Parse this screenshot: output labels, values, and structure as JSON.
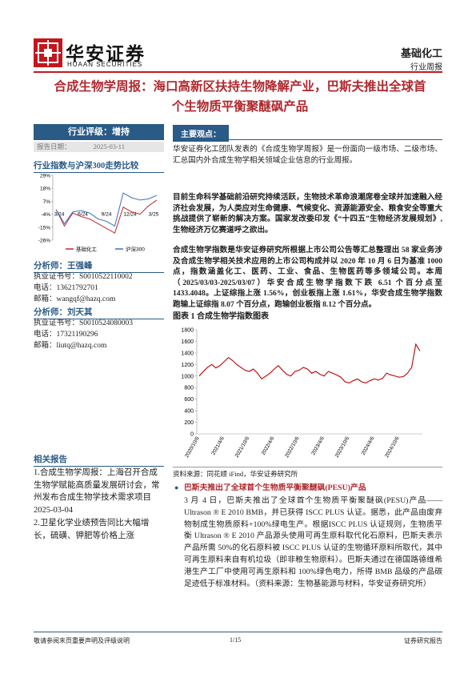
{
  "header": {
    "logo_cn": "华安证券",
    "logo_en": "HUAAN SECURITIES",
    "sector": "基础化工",
    "report_type": "行业周报"
  },
  "title": "合成生物学周报：海口高新区扶持生物降解产业，巴斯夫推出全球首个生物质平衡聚醚砜产品",
  "sidebar": {
    "rating": "行业评级：增持",
    "date_label": "报告日期：",
    "date": "2025-03-11",
    "perf_chart": {
      "type": "line",
      "title": "行业指数与沪深300走势比较",
      "categories": [
        "3/24",
        "6/24",
        "9/24",
        "12/24",
        "3/25"
      ],
      "ylim": [
        -26,
        29
      ],
      "yticks": [
        {
          "value": 29,
          "label": "29%"
        },
        {
          "value": 18,
          "label": "18%"
        },
        {
          "value": 7,
          "label": "7%"
        },
        {
          "value": -4,
          "label": "-4%"
        },
        {
          "value": -15,
          "label": "-15%"
        },
        {
          "value": -26,
          "label": "-26%"
        }
      ],
      "series": [
        {
          "name": "基础化工",
          "color": "#c0282d",
          "values": [
            0,
            -14,
            -3,
            -6,
            -8,
            -12,
            -16,
            -20,
            2,
            -2,
            -4,
            3,
            8
          ]
        },
        {
          "name": "沪深300",
          "color": "#3b6fb5",
          "values": [
            0,
            -12,
            -2,
            -1,
            -3,
            -8,
            -10,
            -14,
            14,
            10,
            8,
            9,
            12
          ]
        }
      ]
    },
    "analysts": [
      {
        "heading": "分析师：王强峰",
        "license": "执业证书号：S0010522110002",
        "phone": "电话：13621792701",
        "email": "邮箱：wangqf@hazq.com"
      },
      {
        "heading": "分析师：刘天其",
        "license": "执业证书号：S0010524080003",
        "phone": "电话：17321190296",
        "email": "邮箱：liutq@hazq.com"
      }
    ],
    "related_heading": "相关报告",
    "related": [
      "1.合成生物学周报：上海召开合成生物学赋能高质量发展研讨会，常州发布合成生物学技术需求项目 2025-03-04",
      "2.卫星化学业绩预告同比大幅增长，硫磺、钾肥等价格上涨"
    ]
  },
  "main": {
    "heading": "主要观点：",
    "paragraphs": [
      "华安证券化工团队发表的《合成生物学周报》是一份面向一级市场、二级市场、汇总国内外合成生物学相关领域企业信息的行业周报。",
      "目前生命科学基础前沿研究持续活跃，生物技术革命浪潮席卷全球并加速融入经济社会发展，为人类应对生命健康、气候变化、资源能源安全、粮食安全等重大挑战提供了崭新的解决方案。国家发改委印发《“十四五”生物经济发展规划》,生物经济万亿赛道呼之欲出。",
      "合成生物学指数是华安证券研究所根据上市公司公告等汇总整理出 58 家业务涉及合成生物学相关技术应用的上市公司构成并以 2020 年 10 月 6 日为基准 1000 点，指数涵盖化工、医药、工业、食品、生物医药等多领域公司。本周（2025/03/03-2025/03/07）华安合成生物学指数下跌 6.51 个百分点至 1433.4048。上证综指上涨 1.56%，创业板指上涨 1.61%，华安合成生物学指数跑输上证综指 8.07 个百分点，跑输创业板指 8.12 个百分点。"
    ],
    "figure_title": "图表 1 合成生物学指数图表",
    "index_chart": {
      "type": "line",
      "color": "#c00000",
      "x_labels": [
        "2020/10/6",
        "2021/4/6",
        "2021/10/6",
        "2022/4/6",
        "2022/10/6",
        "2023/4/6",
        "2023/10/6",
        "2024/4/6",
        "2024/10/6"
      ],
      "ylim": [
        0,
        1800
      ],
      "yticks": [
        0,
        200,
        400,
        600,
        800,
        1000,
        1200,
        1400,
        1600,
        1800
      ],
      "values": [
        1000,
        1080,
        1150,
        1200,
        1140,
        1180,
        1250,
        1320,
        1270,
        1200,
        1150,
        1100,
        1080,
        1120,
        1050,
        950,
        1000,
        1050,
        1120,
        1180,
        1100,
        1030,
        1000,
        1080,
        1100,
        1150,
        1120,
        1050,
        1080,
        1030,
        1000,
        1080,
        1050,
        1020,
        980,
        900,
        880,
        920,
        950,
        900,
        880,
        920,
        950,
        930,
        960,
        1050,
        1020,
        1000,
        980,
        990,
        1050,
        1150,
        1550,
        1433
      ]
    },
    "source": "资料来源：同花顺 iFind，华安证券研究所",
    "news_title": "巴斯夫推出了全球首个生物质平衡聚醚砜(PESU)产品",
    "news_body": "3 月 4 日，巴斯夫推出了全球首个生物质平衡聚醚砜(PESU)产品——Ultrason ® E 2010 BMB，并已获得 ISCC PLUS 认证。据悉，此产品由废弃物制成生物质原料+100%绿电生产。根据ISCC PLUS 认证规则，生物质平衡 Ultrason ® E 2010 产品源头使用可再生原料取代化石原料，巴斯夫表示产品所需 50%的化石原料被 ISCC PLUS 认证的生物循环原料所取代，其中可再生原料来自有机垃圾（即非粮生物原料）。巴斯夫通过在德国路德维希港生产工厂中使用可再生原料和 100%绿色电力，所得 BMB 品级的产品碳足迹低于标准材料。（资料来源：生物基能源与材料，华安证券研究所）"
  },
  "footer": {
    "left": "敬请参阅末页重要声明及评级说明",
    "page": "1/15",
    "right": "证券研究报告"
  }
}
